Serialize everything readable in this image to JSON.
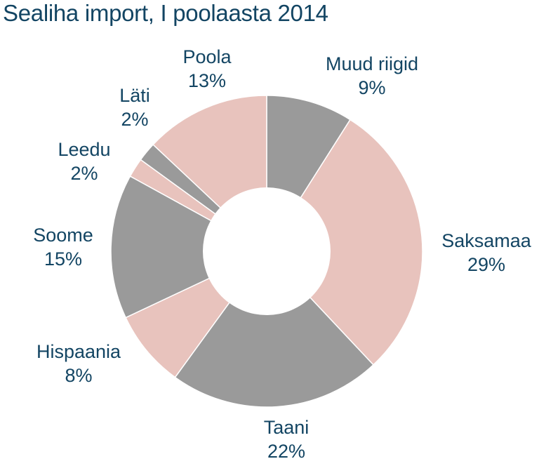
{
  "chart_data": {
    "type": "pie",
    "variant": "donut",
    "title": "Sealiha import, I poolaasta 2014",
    "start": "12 o'clock",
    "direction": "clockwise",
    "slices": [
      {
        "name": "Muud riigid",
        "value": 9,
        "label": "9%",
        "color": "#9a9a9a"
      },
      {
        "name": "Saksamaa",
        "value": 29,
        "label": "29%",
        "color": "#e8c3bd"
      },
      {
        "name": "Taani",
        "value": 22,
        "label": "22%",
        "color": "#9a9a9a"
      },
      {
        "name": "Hispaania",
        "value": 8,
        "label": "8%",
        "color": "#e8c3bd"
      },
      {
        "name": "Soome",
        "value": 15,
        "label": "15%",
        "color": "#9a9a9a"
      },
      {
        "name": "Leedu",
        "value": 2,
        "label": "2%",
        "color": "#e8c3bd"
      },
      {
        "name": "Läti",
        "value": 2,
        "label": "2%",
        "color": "#9a9a9a"
      },
      {
        "name": "Poola",
        "value": 13,
        "label": "13%",
        "color": "#e8c3bd"
      }
    ],
    "text_color": "#134563",
    "background_color": "#ffffff"
  }
}
